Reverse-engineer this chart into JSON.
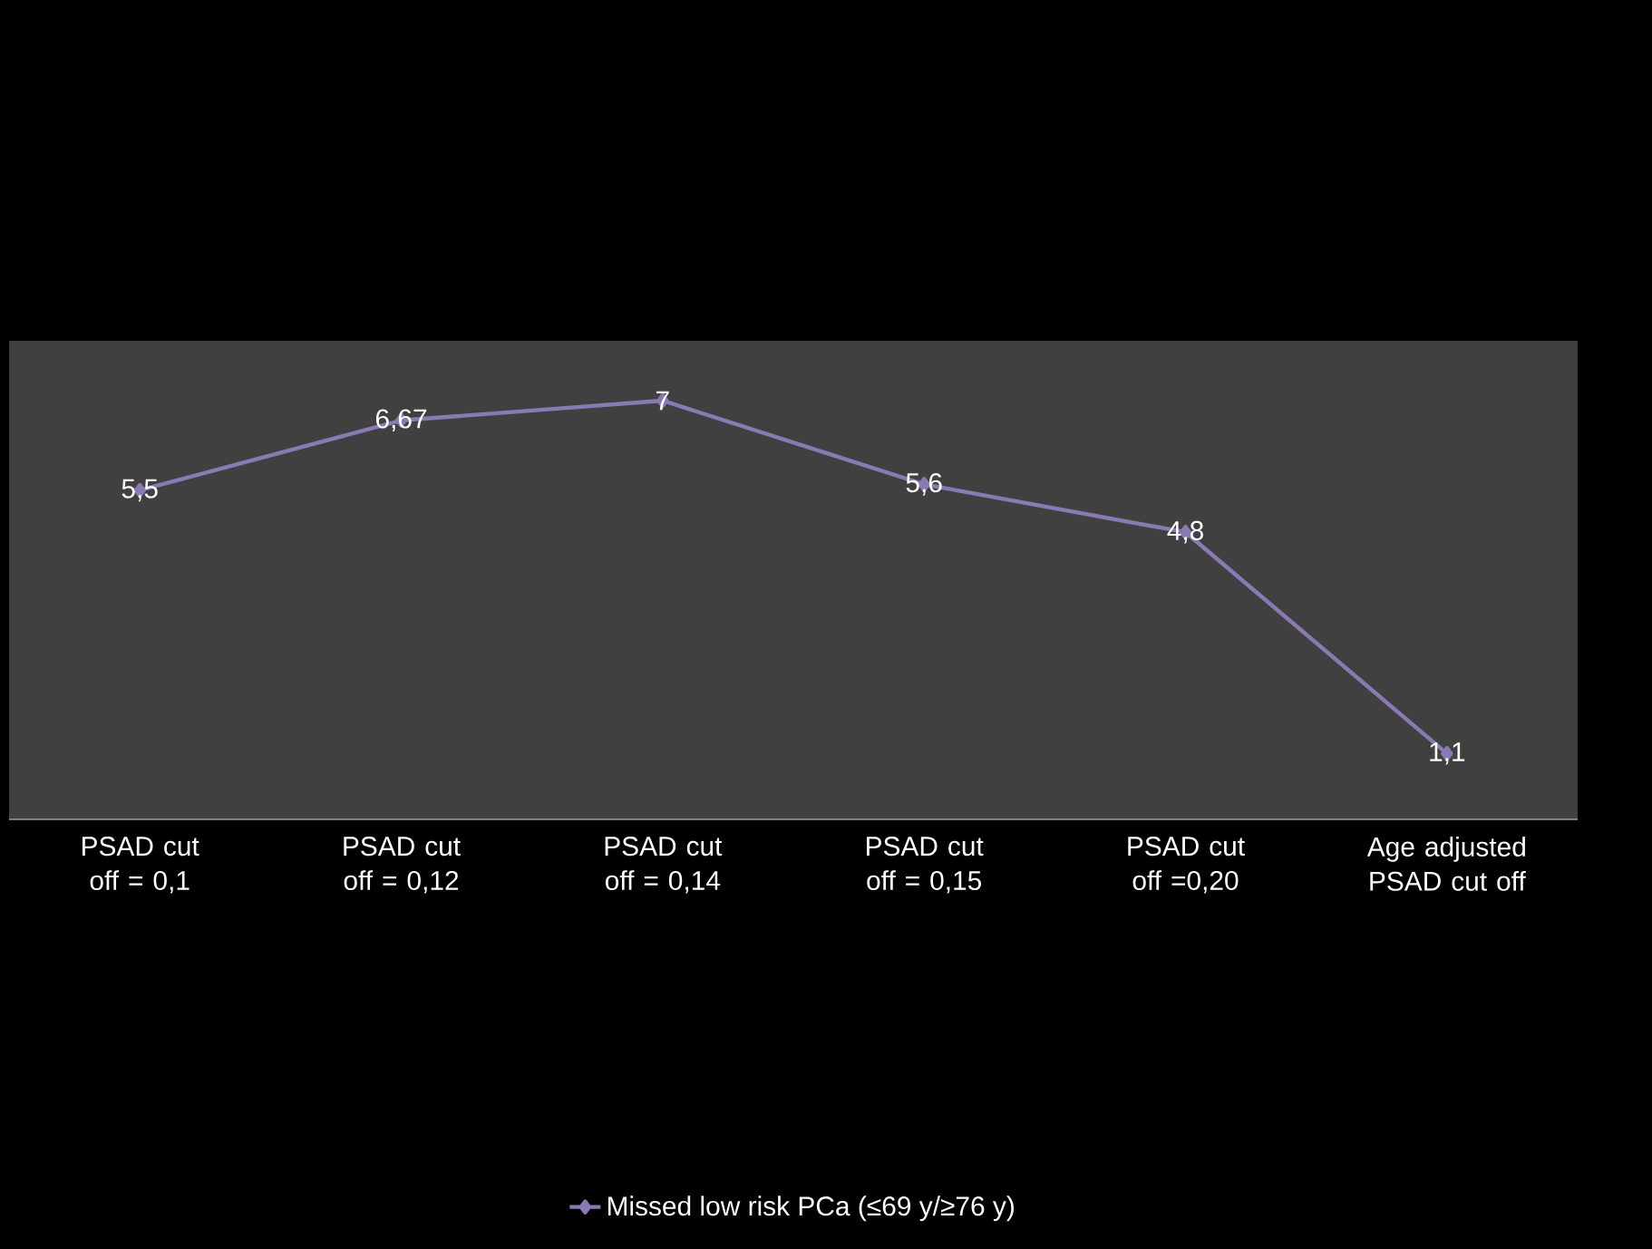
{
  "chart_data": {
    "type": "line",
    "categories": [
      "PSAD cut off = 0,1",
      "PSAD cut off = 0,12",
      "PSAD cut off = 0,14",
      "PSAD cut off = 0,15",
      "PSAD cut off =0,20",
      "Age adjusted PSAD cut off"
    ],
    "series": [
      {
        "name": "Missed  low risk PCa  (≤69 y/≥76 y)",
        "color": "#8a7ab4",
        "values": [
          5.5,
          6.67,
          7,
          5.6,
          4.8,
          1.1
        ],
        "value_labels": [
          "5,5",
          "6,67",
          "7",
          "5,6",
          "4,8",
          "1,1"
        ]
      }
    ],
    "ylim": [
      0,
      8
    ],
    "tick_labels": "x",
    "grid": false,
    "legend": "bottom",
    "marker": "diamond",
    "line_style": "solid"
  }
}
